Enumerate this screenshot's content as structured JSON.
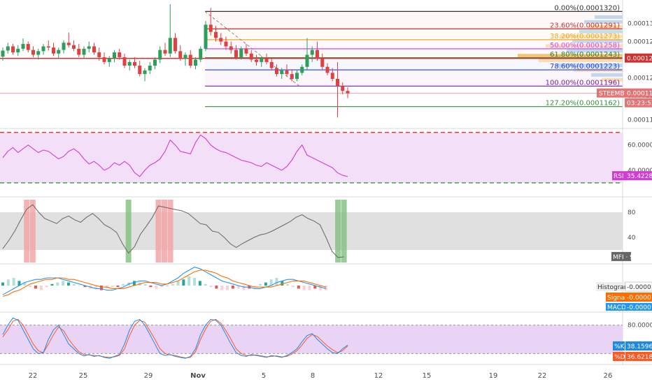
{
  "chart_data": {
    "type": "candlestick-with-indicators",
    "symbol": "STEEMBTC",
    "price_tag": {
      "label": "STEEMBTC",
      "value": "0.0001184",
      "countdown": "03:23:53",
      "hline_value": "0.0001242"
    },
    "price_ticks": [
      "0.0001300",
      "0.0001270",
      "0.0001240",
      "0.0001210",
      "0.0001180",
      "0.0001140"
    ],
    "price_range": [
      0.0001128,
      0.0001332
    ],
    "fib_levels": [
      {
        "label": "0.00%(0.0001320)",
        "value": 0.000132,
        "color": "#333333"
      },
      {
        "label": "23.60%(0.0001291)",
        "value": 0.0001291,
        "color": "#d32f2f"
      },
      {
        "label": "38.20%(0.0001273)",
        "value": 0.0001273,
        "color": "#f5a623"
      },
      {
        "label": "50.00%(0.0001258)",
        "value": 0.0001258,
        "color": "#e040fb"
      },
      {
        "label": "61.80%(0.0001243)",
        "value": 0.0001243,
        "color": "#2e7d32"
      },
      {
        "label": "78.60%(0.0001223)",
        "value": 0.0001223,
        "color": "#1a3cff"
      },
      {
        "label": "100.00%(0.0001196)",
        "value": 0.0001196,
        "color": "#7b1fa2"
      },
      {
        "label": "127.20%(0.0001162)",
        "value": 0.0001162,
        "color": "#388e3c"
      }
    ],
    "candles": [
      [
        0.0001245,
        0.000126,
        0.0001238,
        0.0001255
      ],
      [
        0.0001255,
        0.0001268,
        0.000125,
        0.0001262
      ],
      [
        0.0001262,
        0.0001266,
        0.0001248,
        0.0001252
      ],
      [
        0.0001252,
        0.0001264,
        0.0001246,
        0.0001258
      ],
      [
        0.0001258,
        0.0001275,
        0.0001254,
        0.0001266
      ],
      [
        0.0001266,
        0.000127,
        0.0001252,
        0.0001256
      ],
      [
        0.0001256,
        0.0001262,
        0.0001244,
        0.0001248
      ],
      [
        0.0001248,
        0.0001258,
        0.000124,
        0.0001254
      ],
      [
        0.0001254,
        0.0001266,
        0.0001248,
        0.0001262
      ],
      [
        0.0001262,
        0.0001272,
        0.0001255,
        0.000126
      ],
      [
        0.000126,
        0.0001268,
        0.0001246,
        0.000125
      ],
      [
        0.000125,
        0.000126,
        0.0001242,
        0.0001256
      ],
      [
        0.0001256,
        0.0001272,
        0.000125,
        0.0001268
      ],
      [
        0.0001268,
        0.0001285,
        0.000126,
        0.0001264
      ],
      [
        0.0001264,
        0.0001272,
        0.0001254,
        0.0001258
      ],
      [
        0.0001258,
        0.0001266,
        0.0001244,
        0.0001248
      ],
      [
        0.0001248,
        0.0001262,
        0.0001242,
        0.0001258
      ],
      [
        0.0001258,
        0.000127,
        0.0001252,
        0.0001262
      ],
      [
        0.0001262,
        0.0001268,
        0.0001248,
        0.0001252
      ],
      [
        0.0001252,
        0.000126,
        0.0001238,
        0.0001244
      ],
      [
        0.0001244,
        0.0001252,
        0.0001232,
        0.0001236
      ],
      [
        0.0001236,
        0.0001246,
        0.0001228,
        0.0001242
      ],
      [
        0.0001242,
        0.0001256,
        0.0001236,
        0.0001252
      ],
      [
        0.0001252,
        0.0001258,
        0.000124,
        0.0001244
      ],
      [
        0.0001244,
        0.000125,
        0.0001226,
        0.000123
      ],
      [
        0.000123,
        0.000124,
        0.0001222,
        0.0001236
      ],
      [
        0.0001236,
        0.0001244,
        0.0001226,
        0.000123
      ],
      [
        0.000123,
        0.0001238,
        0.0001212,
        0.0001216
      ],
      [
        0.0001216,
        0.0001226,
        0.0001204,
        0.0001222
      ],
      [
        0.0001222,
        0.0001236,
        0.0001216,
        0.000123
      ],
      [
        0.000123,
        0.0001244,
        0.0001224,
        0.000124
      ],
      [
        0.000124,
        0.0001262,
        0.0001234,
        0.0001256
      ],
      [
        0.0001256,
        0.0001268,
        0.0001246,
        0.000125
      ],
      [
        0.000125,
        0.0001332,
        0.0001244,
        0.0001276
      ],
      [
        0.0001276,
        0.0001284,
        0.000125,
        0.0001254
      ],
      [
        0.0001254,
        0.0001264,
        0.0001238,
        0.0001242
      ],
      [
        0.0001242,
        0.0001252,
        0.000123,
        0.0001248
      ],
      [
        0.0001248,
        0.0001256,
        0.0001226,
        0.000123
      ],
      [
        0.000123,
        0.0001244,
        0.0001224,
        0.000124
      ],
      [
        0.000124,
        0.0001262,
        0.0001236,
        0.0001258
      ],
      [
        0.0001258,
        0.0001304,
        0.0001254,
        0.0001298
      ],
      [
        0.0001298,
        0.0001326,
        0.000128,
        0.0001286
      ],
      [
        0.0001286,
        0.0001296,
        0.000127,
        0.0001276
      ],
      [
        0.0001276,
        0.0001284,
        0.0001264,
        0.000127
      ],
      [
        0.000127,
        0.0001278,
        0.0001256,
        0.0001262
      ],
      [
        0.0001262,
        0.000127,
        0.000125,
        0.0001256
      ],
      [
        0.0001256,
        0.0001264,
        0.000124,
        0.0001244
      ],
      [
        0.0001244,
        0.0001262,
        0.000124,
        0.0001258
      ],
      [
        0.0001258,
        0.0001266,
        0.0001246,
        0.000125
      ],
      [
        0.000125,
        0.0001256,
        0.0001236,
        0.000124
      ],
      [
        0.000124,
        0.0001248,
        0.000123,
        0.0001236
      ],
      [
        0.0001236,
        0.0001246,
        0.0001228,
        0.0001242
      ],
      [
        0.0001242,
        0.000125,
        0.0001232,
        0.0001236
      ],
      [
        0.0001236,
        0.0001242,
        0.0001222,
        0.0001226
      ],
      [
        0.0001226,
        0.0001232,
        0.0001212,
        0.0001216
      ],
      [
        0.0001216,
        0.0001226,
        0.0001208,
        0.0001222
      ],
      [
        0.0001222,
        0.0001232,
        0.0001212,
        0.0001216
      ],
      [
        0.0001216,
        0.0001224,
        0.0001204,
        0.0001208
      ],
      [
        0.0001208,
        0.0001222,
        0.0001204,
        0.0001218
      ],
      [
        0.0001218,
        0.0001232,
        0.0001214,
        0.0001228
      ],
      [
        0.0001228,
        0.0001276,
        0.0001222,
        0.0001248
      ],
      [
        0.0001248,
        0.0001262,
        0.0001236,
        0.0001256
      ],
      [
        0.0001256,
        0.000127,
        0.0001238,
        0.0001242
      ],
      [
        0.0001242,
        0.000125,
        0.0001224,
        0.0001228
      ],
      [
        0.0001228,
        0.0001234,
        0.0001214,
        0.0001218
      ],
      [
        0.0001218,
        0.0001226,
        0.0001204,
        0.0001208
      ],
      [
        0.0001208,
        0.0001236,
        0.0001144,
        0.0001196
      ],
      [
        0.0001196,
        0.0001202,
        0.0001182,
        0.0001188
      ],
      [
        0.0001188,
        0.0001194,
        0.0001176,
        0.0001184
      ]
    ],
    "rsi": {
      "label": "RSI",
      "value": "35.4228",
      "ticks": [
        "60.0000",
        "40.0000"
      ],
      "range": [
        20,
        72
      ],
      "upper": 70,
      "lower": 30,
      "values": [
        50,
        55,
        58,
        54,
        57,
        60,
        57,
        54,
        56,
        55,
        52,
        49,
        51,
        55,
        57,
        54,
        49,
        45,
        47,
        44,
        40,
        42,
        46,
        44,
        47,
        44,
        38,
        35,
        40,
        44,
        46,
        49,
        55,
        64,
        60,
        55,
        54,
        53,
        62,
        68,
        65,
        60,
        57,
        55,
        54,
        52,
        50,
        48,
        47,
        46,
        44,
        43,
        46,
        44,
        42,
        40,
        43,
        48,
        55,
        60,
        52,
        50,
        48,
        46,
        44,
        42,
        38,
        36,
        35
      ]
    },
    "mfi": {
      "label": "MFI",
      "value": "9",
      "ticks": [
        "80",
        "40"
      ],
      "range": [
        0,
        100
      ],
      "upper": 80,
      "lower": 20,
      "values": [
        22,
        35,
        50,
        68,
        85,
        92,
        80,
        70,
        66,
        62,
        70,
        74,
        68,
        64,
        72,
        78,
        70,
        60,
        55,
        48,
        30,
        15,
        25,
        45,
        58,
        72,
        90,
        88,
        86,
        84,
        82,
        78,
        70,
        62,
        60,
        50,
        48,
        40,
        30,
        24,
        30,
        35,
        40,
        44,
        46,
        50,
        55,
        60,
        65,
        72,
        76,
        70,
        66,
        60,
        40,
        18,
        8,
        9
      ]
    },
    "macd": {
      "labels": {
        "histogram": "Histogram",
        "signal": "Signal",
        "macd": "MACD"
      },
      "values": {
        "histogram": "-0.0000",
        "signal": "-0.0000",
        "macd": "-0.0000"
      },
      "hist": [
        2,
        4,
        5,
        3,
        2,
        -1,
        -2,
        -3,
        -1,
        1,
        2,
        3,
        2,
        1,
        0,
        -1,
        -2,
        -2,
        -3,
        -2,
        -1,
        -1,
        1,
        2,
        3,
        2,
        1,
        -1,
        -2,
        -1,
        0,
        1,
        3,
        4,
        6,
        5,
        3,
        1,
        -1,
        -2,
        -3,
        -3,
        -2,
        -2,
        -3,
        -2,
        -1,
        1,
        2,
        4,
        5,
        3,
        1,
        -1,
        -2,
        -3,
        -3,
        -2,
        -3,
        -3
      ],
      "macd_line": [
        -6,
        -4,
        -2,
        0,
        2,
        3,
        4,
        4,
        5,
        5,
        5,
        4,
        3,
        2,
        1,
        0,
        -1,
        -2,
        -2,
        -3,
        -3,
        -2,
        -1,
        1,
        2,
        3,
        3,
        2,
        1,
        0,
        1,
        3,
        5,
        8,
        10,
        12,
        11,
        9,
        7,
        5,
        3,
        2,
        1,
        0,
        -1,
        -1,
        -2,
        -2,
        -1,
        0,
        2,
        3,
        4,
        4,
        3,
        2,
        1,
        0,
        -1,
        -2
      ],
      "signal_line": [
        -7,
        -6,
        -4,
        -3,
        -1,
        1,
        2,
        3,
        4,
        4,
        5,
        5,
        4,
        4,
        3,
        2,
        1,
        0,
        -1,
        -1,
        -2,
        -2,
        -2,
        -1,
        0,
        1,
        2,
        2,
        2,
        1,
        1,
        2,
        3,
        5,
        7,
        9,
        10,
        10,
        9,
        8,
        6,
        5,
        3,
        2,
        1,
        0,
        -1,
        -1,
        -1,
        -1,
        0,
        1,
        2,
        3,
        3,
        3,
        2,
        1,
        0,
        -1
      ]
    },
    "stoch": {
      "labels": {
        "k": "%K",
        "d": "%D"
      },
      "values": {
        "k": "38.1596",
        "d": "36.6218"
      },
      "ticks": [
        "80.0000"
      ],
      "range": [
        0,
        100
      ],
      "upper": 80,
      "lower": 20,
      "k": [
        60,
        80,
        95,
        90,
        70,
        50,
        30,
        20,
        22,
        50,
        70,
        80,
        60,
        40,
        30,
        20,
        15,
        18,
        14,
        16,
        12,
        10,
        14,
        18,
        40,
        70,
        88,
        92,
        80,
        60,
        40,
        20,
        16,
        18,
        14,
        12,
        10,
        14,
        30,
        60,
        80,
        92,
        90,
        80,
        60,
        40,
        22,
        16,
        14,
        18,
        16,
        14,
        12,
        16,
        14,
        12,
        16,
        22,
        30,
        45,
        58,
        62,
        50,
        40,
        30,
        22,
        20,
        30,
        38
      ],
      "d": [
        55,
        70,
        88,
        92,
        80,
        60,
        40,
        26,
        22,
        40,
        60,
        76,
        68,
        50,
        36,
        24,
        18,
        17,
        16,
        15,
        13,
        12,
        13,
        16,
        30,
        58,
        80,
        90,
        86,
        68,
        50,
        30,
        20,
        17,
        16,
        13,
        11,
        12,
        24,
        50,
        72,
        88,
        92,
        84,
        68,
        50,
        30,
        20,
        16,
        16,
        17,
        15,
        13,
        14,
        15,
        13,
        14,
        19,
        26,
        38,
        52,
        60,
        56,
        46,
        36,
        28,
        22,
        26,
        36
      ]
    },
    "date_labels": [
      "22",
      "25",
      "29",
      "Nov",
      "5",
      "8",
      "12",
      "15",
      "19",
      "22",
      "26"
    ]
  }
}
